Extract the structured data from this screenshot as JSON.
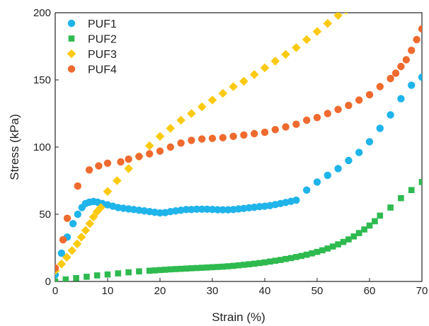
{
  "chart_data": {
    "type": "scatter",
    "title": "",
    "xlabel": "Strain (%)",
    "ylabel": "Stress (kPa)",
    "xlim": [
      0,
      70
    ],
    "ylim": [
      0,
      200
    ],
    "xticks": [
      0,
      10,
      20,
      30,
      40,
      50,
      60,
      70
    ],
    "yticks": [
      0,
      50,
      100,
      150,
      200
    ],
    "grid": false,
    "legend_position": "top-left",
    "series": [
      {
        "name": "PUF1",
        "marker": "circle",
        "color": "#1fb4ea",
        "points": [
          [
            0,
            5
          ],
          [
            1.2,
            21
          ],
          [
            2.3,
            33
          ],
          [
            3.4,
            43
          ],
          [
            4.3,
            50
          ],
          [
            5.1,
            55
          ],
          [
            5.8,
            58
          ],
          [
            6.5,
            59
          ],
          [
            7.3,
            59.5
          ],
          [
            8.1,
            59
          ],
          [
            9.0,
            58
          ],
          [
            10,
            57
          ],
          [
            11,
            56
          ],
          [
            12,
            55
          ],
          [
            13,
            54.5
          ],
          [
            14,
            54
          ],
          [
            15,
            53.5
          ],
          [
            16,
            53
          ],
          [
            17,
            52.5
          ],
          [
            18,
            52
          ],
          [
            19,
            51.5
          ],
          [
            20,
            51
          ],
          [
            21,
            51.2
          ],
          [
            22,
            52
          ],
          [
            23,
            52.5
          ],
          [
            24,
            53
          ],
          [
            25,
            53.5
          ],
          [
            26,
            53.5
          ],
          [
            27,
            53.8
          ],
          [
            28,
            53.8
          ],
          [
            29,
            53.8
          ],
          [
            30,
            53.6
          ],
          [
            31,
            53.4
          ],
          [
            32,
            53.3
          ],
          [
            33,
            53.3
          ],
          [
            34,
            53.5
          ],
          [
            35,
            54
          ],
          [
            36,
            54.3
          ],
          [
            37,
            54.8
          ],
          [
            38,
            55.2
          ],
          [
            39,
            55.7
          ],
          [
            40,
            56
          ],
          [
            41,
            56.5
          ],
          [
            42,
            57.2
          ],
          [
            43,
            58
          ],
          [
            44,
            58.8
          ],
          [
            45,
            59.6
          ],
          [
            46,
            60.5
          ],
          [
            48,
            68
          ],
          [
            50,
            74
          ],
          [
            52,
            79
          ],
          [
            54,
            84
          ],
          [
            56,
            90
          ],
          [
            58,
            96
          ],
          [
            60,
            104
          ],
          [
            62,
            114
          ],
          [
            64,
            124
          ],
          [
            66,
            136
          ],
          [
            68,
            146
          ],
          [
            70,
            152
          ]
        ]
      },
      {
        "name": "PUF2",
        "marker": "square",
        "color": "#2eba4f",
        "points": [
          [
            0,
            0
          ],
          [
            2,
            1.5
          ],
          [
            4,
            2.5
          ],
          [
            6,
            3.5
          ],
          [
            8,
            4.5
          ],
          [
            10,
            5.2
          ],
          [
            12,
            6
          ],
          [
            14,
            6.8
          ],
          [
            16,
            7.5
          ],
          [
            18,
            8
          ],
          [
            19,
            8.2
          ],
          [
            20,
            8.5
          ],
          [
            21,
            8.7
          ],
          [
            22,
            9
          ],
          [
            23,
            9.2
          ],
          [
            24,
            9.4
          ],
          [
            25,
            9.6
          ],
          [
            26,
            9.8
          ],
          [
            27,
            10
          ],
          [
            28,
            10.2
          ],
          [
            29,
            10.4
          ],
          [
            30,
            10.6
          ],
          [
            31,
            10.8
          ],
          [
            32,
            11
          ],
          [
            33,
            11.3
          ],
          [
            34,
            11.6
          ],
          [
            35,
            12
          ],
          [
            36,
            12.4
          ],
          [
            37,
            12.8
          ],
          [
            38,
            13.2
          ],
          [
            39,
            13.7
          ],
          [
            40,
            14.2
          ],
          [
            41,
            14.8
          ],
          [
            42,
            15.4
          ],
          [
            43,
            16
          ],
          [
            44,
            16.7
          ],
          [
            45,
            17.4
          ],
          [
            46,
            18.2
          ],
          [
            47,
            19
          ],
          [
            48,
            19.9
          ],
          [
            49,
            20.9
          ],
          [
            50,
            22
          ],
          [
            51,
            23.2
          ],
          [
            52,
            24.5
          ],
          [
            53,
            26
          ],
          [
            54,
            27.6
          ],
          [
            55,
            29.4
          ],
          [
            56,
            31.3
          ],
          [
            57,
            33.5
          ],
          [
            58,
            36
          ],
          [
            59,
            38.7
          ],
          [
            60,
            41.6
          ],
          [
            61,
            44.8
          ],
          [
            62,
            49
          ],
          [
            64,
            55
          ],
          [
            66,
            62
          ],
          [
            68,
            68
          ],
          [
            70,
            74
          ]
        ]
      },
      {
        "name": "PUF3",
        "marker": "diamond",
        "color": "#fcca12",
        "points": [
          [
            0,
            8
          ],
          [
            1.2,
            13
          ],
          [
            2.2,
            18
          ],
          [
            3.2,
            23
          ],
          [
            4.2,
            28
          ],
          [
            5,
            33
          ],
          [
            5.8,
            38
          ],
          [
            6.6,
            43
          ],
          [
            7.3,
            48
          ],
          [
            8,
            52
          ],
          [
            8.7,
            55
          ],
          [
            10,
            67
          ],
          [
            11.8,
            75
          ],
          [
            14,
            84
          ],
          [
            16,
            93
          ],
          [
            18,
            101
          ],
          [
            20,
            108
          ],
          [
            22,
            114
          ],
          [
            24,
            120
          ],
          [
            26,
            125
          ],
          [
            28,
            130
          ],
          [
            30,
            135
          ],
          [
            32,
            140
          ],
          [
            34,
            145
          ],
          [
            36,
            149
          ],
          [
            38,
            154
          ],
          [
            40,
            159
          ],
          [
            42,
            164
          ],
          [
            44,
            169
          ],
          [
            46,
            174
          ],
          [
            48,
            180
          ],
          [
            50,
            186
          ],
          [
            52,
            192
          ],
          [
            54,
            198
          ],
          [
            55.5,
            202
          ]
        ]
      },
      {
        "name": "PUF4",
        "marker": "circle",
        "color": "#ef6a2e",
        "points": [
          [
            0,
            10
          ],
          [
            1.5,
            31
          ],
          [
            2.3,
            47
          ],
          [
            4.3,
            71
          ],
          [
            6.5,
            83
          ],
          [
            8.3,
            86
          ],
          [
            10,
            88
          ],
          [
            12.5,
            89
          ],
          [
            14,
            91
          ],
          [
            16,
            93
          ],
          [
            18,
            95
          ],
          [
            20,
            97
          ],
          [
            22,
            100
          ],
          [
            24,
            103
          ],
          [
            26,
            105
          ],
          [
            28,
            106
          ],
          [
            30,
            106.5
          ],
          [
            32,
            107
          ],
          [
            34,
            108
          ],
          [
            36,
            109
          ],
          [
            38,
            110
          ],
          [
            40,
            111
          ],
          [
            42,
            113
          ],
          [
            44,
            115
          ],
          [
            46,
            117
          ],
          [
            48,
            120
          ],
          [
            50,
            122
          ],
          [
            52,
            125
          ],
          [
            54,
            128
          ],
          [
            56,
            131
          ],
          [
            58,
            135
          ],
          [
            60,
            139
          ],
          [
            62,
            145
          ],
          [
            64,
            151
          ],
          [
            65,
            155
          ],
          [
            66,
            160
          ],
          [
            67,
            165
          ],
          [
            68,
            172
          ],
          [
            69,
            180
          ],
          [
            70,
            188
          ]
        ]
      }
    ]
  }
}
